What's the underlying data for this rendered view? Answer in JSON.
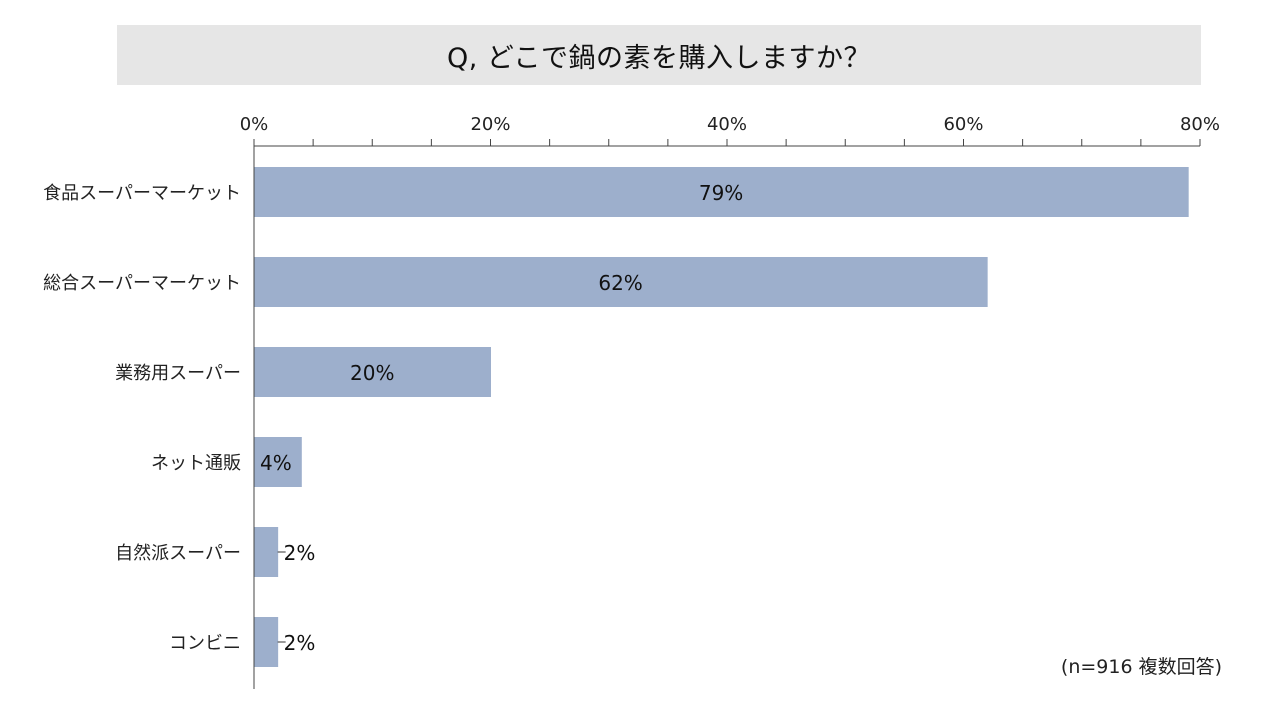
{
  "title": "Q, どこで鍋の素を購入しますか？",
  "note": "(n=916 複数回答)",
  "chart_data": {
    "type": "bar",
    "orientation": "horizontal",
    "categories": [
      "食品スーパーマーケット",
      "総合スーパーマーケット",
      "業務用スーパー",
      "ネット通販",
      "自然派スーパー",
      "コンビニ"
    ],
    "values": [
      79,
      62,
      20,
      4,
      2,
      2
    ],
    "data_labels": [
      "79%",
      "62%",
      "20%",
      "4%",
      "2%",
      "2%"
    ],
    "xlim": [
      0,
      80
    ],
    "x_ticks": [
      0,
      20,
      40,
      60,
      80
    ],
    "x_tick_labels": [
      "0%",
      "20%",
      "40%",
      "60%",
      "80%"
    ],
    "axis_position": "top",
    "grid": false,
    "bar_color": "#9dafcc"
  }
}
